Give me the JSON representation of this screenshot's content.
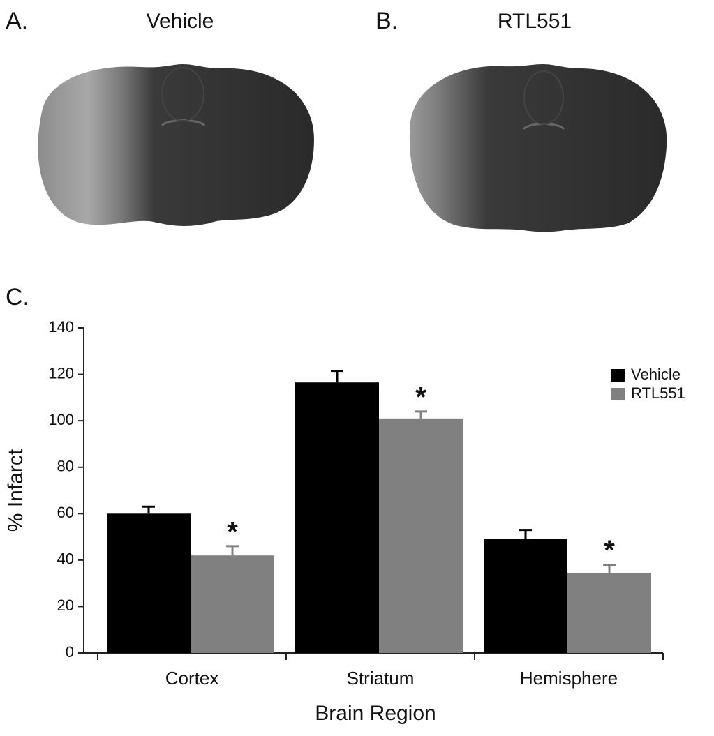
{
  "panels": [
    {
      "label": "A.",
      "title": "Vehicle"
    },
    {
      "label": "B.",
      "title": "RTL551"
    }
  ],
  "chart_label": "C.",
  "chart_data": {
    "type": "bar",
    "ylabel": "% Infarct",
    "xlabel": "Brain Region",
    "categories": [
      "Cortex",
      "Striatum",
      "Hemisphere"
    ],
    "series": [
      {
        "name": "Vehicle",
        "color": "#000000",
        "values": [
          60,
          116.5,
          49
        ],
        "errors": [
          3,
          5,
          4
        ]
      },
      {
        "name": "RTL551",
        "color": "#808080",
        "values": [
          42,
          101,
          34.5
        ],
        "errors": [
          4,
          3,
          3.5
        ],
        "markers": [
          "*",
          "*",
          "*"
        ]
      }
    ],
    "ylim": [
      0,
      140
    ],
    "yticks": [
      0,
      20,
      40,
      60,
      80,
      100,
      120,
      140
    ],
    "legend": "upper right"
  }
}
